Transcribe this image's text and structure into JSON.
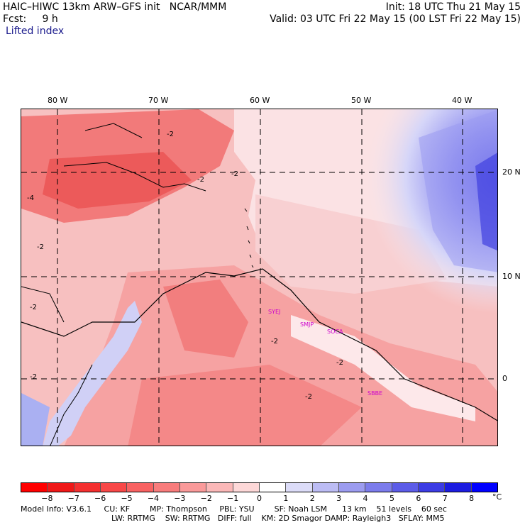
{
  "header": {
    "model_line": "HAIC–HIWC 13km ARW–GFS init   NCAR/MMM",
    "fcst_line": "Fcst:     9 h",
    "field_name": "Lifted index",
    "init_line": "Init: 18 UTC Thu 21 May 15",
    "valid_line": "Valid: 03 UTC Fri 22 May 15 (00 LST Fri 22 May 15)"
  },
  "map": {
    "lon_labels": [
      "80 W",
      "70 W",
      "60 W",
      "50 W",
      "40 W"
    ],
    "lat_labels": [
      "20 N",
      "10 N",
      "0"
    ],
    "stations": [
      "SYEJ",
      "SMJP",
      "SOCA",
      "SBBE"
    ],
    "contour_labels": [
      "-2",
      "-2",
      "-2",
      "-4",
      "-2",
      "-2",
      "-2",
      "-2",
      "-2",
      "-2"
    ]
  },
  "colorbar": {
    "ticks": [
      "−8",
      "−7",
      "−6",
      "−5",
      "−4",
      "−3",
      "−2",
      "−1",
      "0",
      "1",
      "2",
      "3",
      "4",
      "5",
      "6",
      "7",
      "8"
    ],
    "unit": "°C",
    "colors": [
      "#ff0000",
      "#f01818",
      "#f53030",
      "#f84848",
      "#f86262",
      "#f87c7c",
      "#fa9a9a",
      "#fbb8b8",
      "#fdd8d8",
      "#ffffff",
      "#dcdcf8",
      "#bcbcf4",
      "#9c9cf0",
      "#7c7cec",
      "#5c5ce8",
      "#3c3ce4",
      "#1c1ce0",
      "#0000ff"
    ]
  },
  "footer": {
    "line1": "Model Info: V3.6.1     CU: KF        MP: Thompson     PBL: YSU        SF: Noah LSM      13 km    51 levels    60 sec",
    "line2": "LW: RRTMG    SW: RRTMG   DIFF: full    KM: 2D Smagor DAMP: Rayleigh3   SFLAY: MM5"
  }
}
